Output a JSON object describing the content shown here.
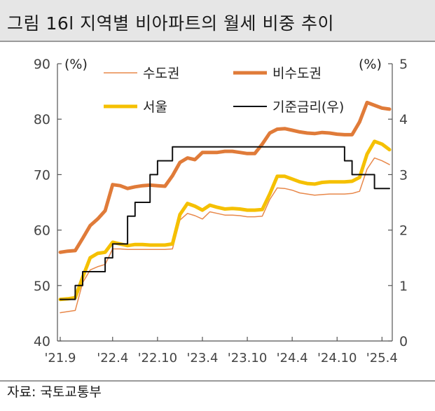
{
  "header": {
    "title": "그림 16l 지역별 비아파트의 월세 비중 추이"
  },
  "footer": {
    "source": "자료: 국토교통부"
  },
  "chart_data": {
    "type": "line",
    "title": "그림 16l 지역별 비아파트의 월세 비중 추이",
    "y_left": {
      "unit": "(%)",
      "range": [
        40,
        90
      ],
      "ticks": [
        40,
        50,
        60,
        70,
        80,
        90
      ]
    },
    "y_right": {
      "unit": "(%)",
      "range": [
        0,
        5
      ],
      "ticks": [
        0,
        1,
        2,
        3,
        4,
        5
      ]
    },
    "x_ticks": [
      "'21.9",
      "'22.4",
      "'22.10",
      "'23.4",
      "'23.10",
      "'24.4",
      "'24.10",
      "'25.4"
    ],
    "x_tick_months": [
      0,
      7,
      13,
      19,
      25,
      31,
      37,
      43
    ],
    "x_range_months": [
      0,
      44
    ],
    "grid": false,
    "legend_position": "top",
    "series": [
      {
        "name": "수도권",
        "axis": "left",
        "color": "#e8884a",
        "style": "thin",
        "values": [
          45.1,
          45.3,
          45.5,
          50.5,
          52.8,
          53.4,
          53.8,
          56.6,
          56.6,
          56.5,
          56.5,
          56.5,
          56.5,
          56.5,
          56.5,
          56.6,
          61.8,
          63.0,
          62.6,
          62.0,
          63.3,
          63.0,
          62.7,
          62.7,
          62.6,
          62.4,
          62.4,
          62.5,
          65.5,
          67.6,
          67.5,
          67.2,
          66.7,
          66.5,
          66.3,
          66.4,
          66.5,
          66.5,
          66.5,
          66.6,
          67.0,
          71.0,
          73.0,
          72.5,
          71.8
        ]
      },
      {
        "name": "비수도권",
        "axis": "left",
        "color": "#e07b39",
        "style": "thick",
        "values": [
          56.0,
          56.2,
          56.3,
          58.5,
          60.8,
          62.0,
          63.5,
          68.2,
          68.0,
          67.5,
          67.8,
          68.0,
          68.1,
          68.0,
          67.9,
          69.8,
          72.2,
          73.0,
          72.7,
          74.0,
          74.0,
          74.0,
          74.2,
          74.2,
          74.0,
          73.8,
          73.8,
          75.5,
          77.5,
          78.2,
          78.3,
          78.0,
          77.7,
          77.5,
          77.4,
          77.6,
          77.5,
          77.3,
          77.2,
          77.2,
          79.5,
          83.0,
          82.5,
          82.0,
          81.8
        ]
      },
      {
        "name": "서울",
        "axis": "left",
        "color": "#f5c000",
        "style": "thick",
        "values": [
          47.5,
          47.6,
          47.8,
          51.5,
          55.0,
          55.8,
          56.0,
          57.8,
          57.5,
          57.2,
          57.4,
          57.4,
          57.3,
          57.3,
          57.3,
          57.5,
          62.8,
          64.8,
          64.3,
          63.6,
          64.5,
          64.1,
          63.8,
          63.9,
          63.8,
          63.6,
          63.6,
          63.7,
          66.5,
          69.7,
          69.7,
          69.2,
          68.7,
          68.4,
          68.3,
          68.6,
          68.7,
          68.7,
          68.7,
          68.8,
          69.5,
          73.7,
          76.0,
          75.5,
          74.5
        ]
      },
      {
        "name": "기준금리(우)",
        "axis": "right",
        "color": "#111111",
        "style": "step",
        "values": [
          0.75,
          0.75,
          1.0,
          1.25,
          1.25,
          1.25,
          1.5,
          1.75,
          1.75,
          2.25,
          2.5,
          2.5,
          3.0,
          3.25,
          3.25,
          3.5,
          3.5,
          3.5,
          3.5,
          3.5,
          3.5,
          3.5,
          3.5,
          3.5,
          3.5,
          3.5,
          3.5,
          3.5,
          3.5,
          3.5,
          3.5,
          3.5,
          3.5,
          3.5,
          3.5,
          3.5,
          3.5,
          3.5,
          3.25,
          3.0,
          3.0,
          3.0,
          2.75,
          2.75,
          2.75
        ]
      }
    ]
  }
}
